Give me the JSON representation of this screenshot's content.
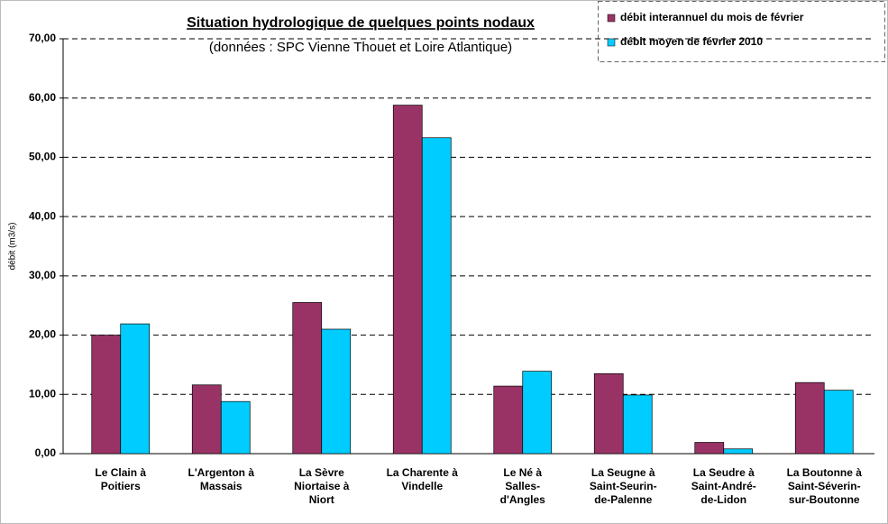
{
  "chart_data": {
    "type": "bar",
    "title": "Situation hydrologique de quelques points nodaux",
    "subtitle": "(données : SPC Vienne Thouet et Loire Atlantique)",
    "y_label": "débit (m3/s)",
    "categories": [
      "Le Clain à\nPoitiers",
      "L'Argenton à\nMassais",
      "La Sèvre\nNiortaise à\nNiort",
      "La Charente à\nVindelle",
      "Le Né à\nSalles-\nd'Angles",
      "La Seugne à\nSaint-Seurin-\nde-Palenne",
      "La Seudre à\nSaint-André-\nde-Lidon",
      "La Boutonne à\nSaint-Séverin-\nsur-Boutonne"
    ],
    "series": [
      {
        "name": "débit interannuel du mois de février",
        "color": "#993366",
        "values": [
          20.0,
          11.6,
          25.5,
          58.8,
          11.4,
          13.5,
          1.9,
          12.0
        ]
      },
      {
        "name": "débit moyen de février 2010",
        "color": "#00ccff",
        "values": [
          21.9,
          8.8,
          21.0,
          53.3,
          13.9,
          9.9,
          0.8,
          10.7
        ]
      }
    ],
    "ylim": [
      0,
      70
    ],
    "yticks": [
      {
        "value": 0,
        "label": "0,00"
      },
      {
        "value": 10,
        "label": "10,00"
      },
      {
        "value": 20,
        "label": "20,00"
      },
      {
        "value": 30,
        "label": "30,00"
      },
      {
        "value": 40,
        "label": "40,00"
      },
      {
        "value": 50,
        "label": "50,00"
      },
      {
        "value": 60,
        "label": "60,00"
      },
      {
        "value": 70,
        "label": "70,00"
      }
    ],
    "grid": true,
    "legend": "top-right"
  }
}
